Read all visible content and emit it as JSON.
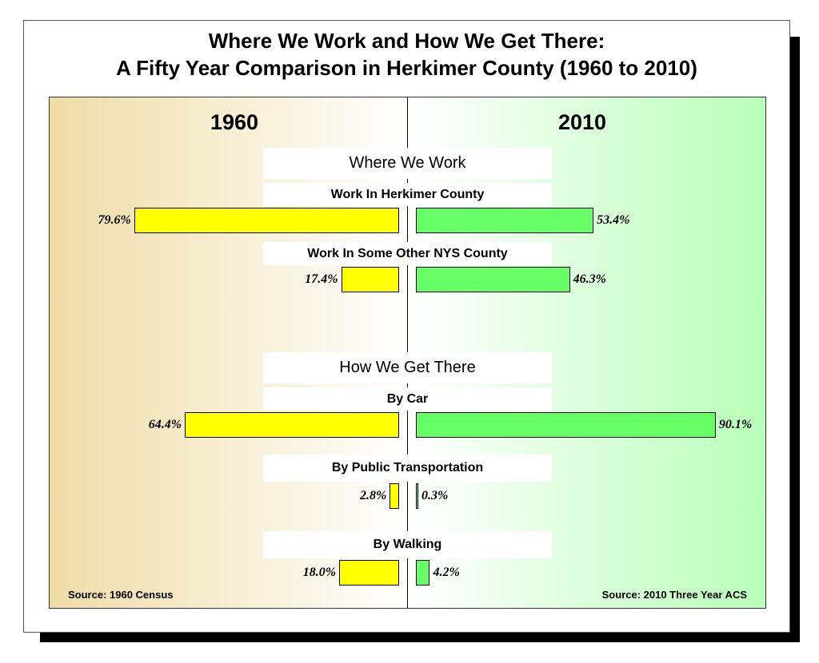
{
  "chart_data": {
    "type": "bar",
    "title": "Where We Work and How We Get There:",
    "subtitle": "A Fifty Year Comparison in Herkimer County (1960 to 2010)",
    "left_year": "1960",
    "right_year": "2010",
    "sections": [
      {
        "heading": "Where We Work",
        "categories": [
          {
            "label": "Work In Herkimer County",
            "v1960": 79.6,
            "l1960": "79.6%",
            "v2010": 53.4,
            "l2010": "53.4%"
          },
          {
            "label": "Work In Some Other NYS County",
            "v1960": 17.4,
            "l1960": "17.4%",
            "v2010": 46.3,
            "l2010": "46.3%"
          }
        ]
      },
      {
        "heading": "How We Get There",
        "categories": [
          {
            "label": "By Car",
            "v1960": 64.4,
            "l1960": "64.4%",
            "v2010": 90.1,
            "l2010": "90.1%"
          },
          {
            "label": "By Public Transportation",
            "v1960": 2.8,
            "l1960": "2.8%",
            "v2010": 0.3,
            "l2010": "0.3%"
          },
          {
            "label": "By Walking",
            "v1960": 18.0,
            "l1960": "18.0%",
            "v2010": 4.2,
            "l2010": "4.2%"
          }
        ]
      }
    ],
    "source_left": "Source: 1960 Census",
    "source_right": "Source: 2010 Three Year ACS",
    "colors": {
      "bar_1960": "#ffff00",
      "bar_2010": "#66ff66",
      "bg_1960_edge": "#efdca6",
      "bg_2010_edge": "#b8ffb8"
    }
  }
}
